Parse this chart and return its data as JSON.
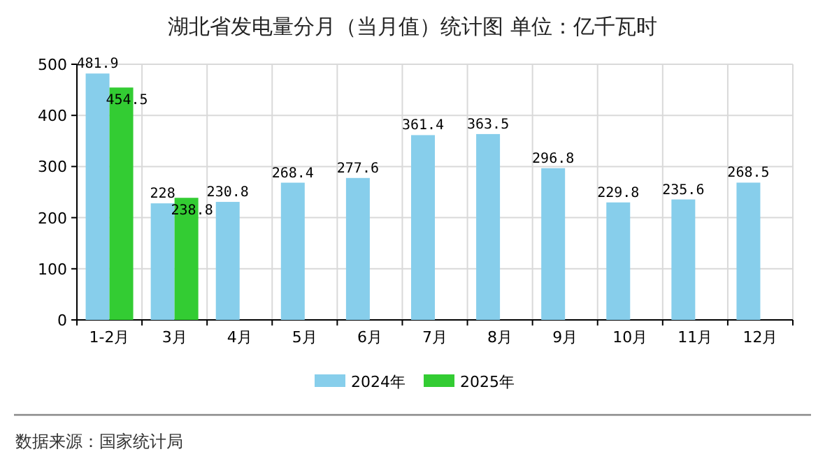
{
  "chart_data": {
    "type": "bar",
    "title": "湖北省发电量分月（当月值）统计图 单位：亿千瓦时",
    "categories": [
      "1-2月",
      "3月",
      "4月",
      "5月",
      "6月",
      "7月",
      "8月",
      "9月",
      "10月",
      "11月",
      "12月"
    ],
    "series": [
      {
        "name": "2024年",
        "color": "#87ceeb",
        "values": [
          481.9,
          228,
          230.8,
          268.4,
          277.6,
          361.4,
          363.5,
          296.8,
          229.8,
          235.6,
          268.5
        ]
      },
      {
        "name": "2025年",
        "color": "#33cc33",
        "values": [
          454.5,
          238.8,
          null,
          null,
          null,
          null,
          null,
          null,
          null,
          null,
          null
        ]
      }
    ],
    "ylim": [
      0,
      500
    ],
    "yticks": [
      0,
      100,
      200,
      300,
      400,
      500
    ],
    "grid": true,
    "legend": "bottom",
    "data_labels": true,
    "annotations": [
      "数据来源：国家统计局"
    ]
  }
}
